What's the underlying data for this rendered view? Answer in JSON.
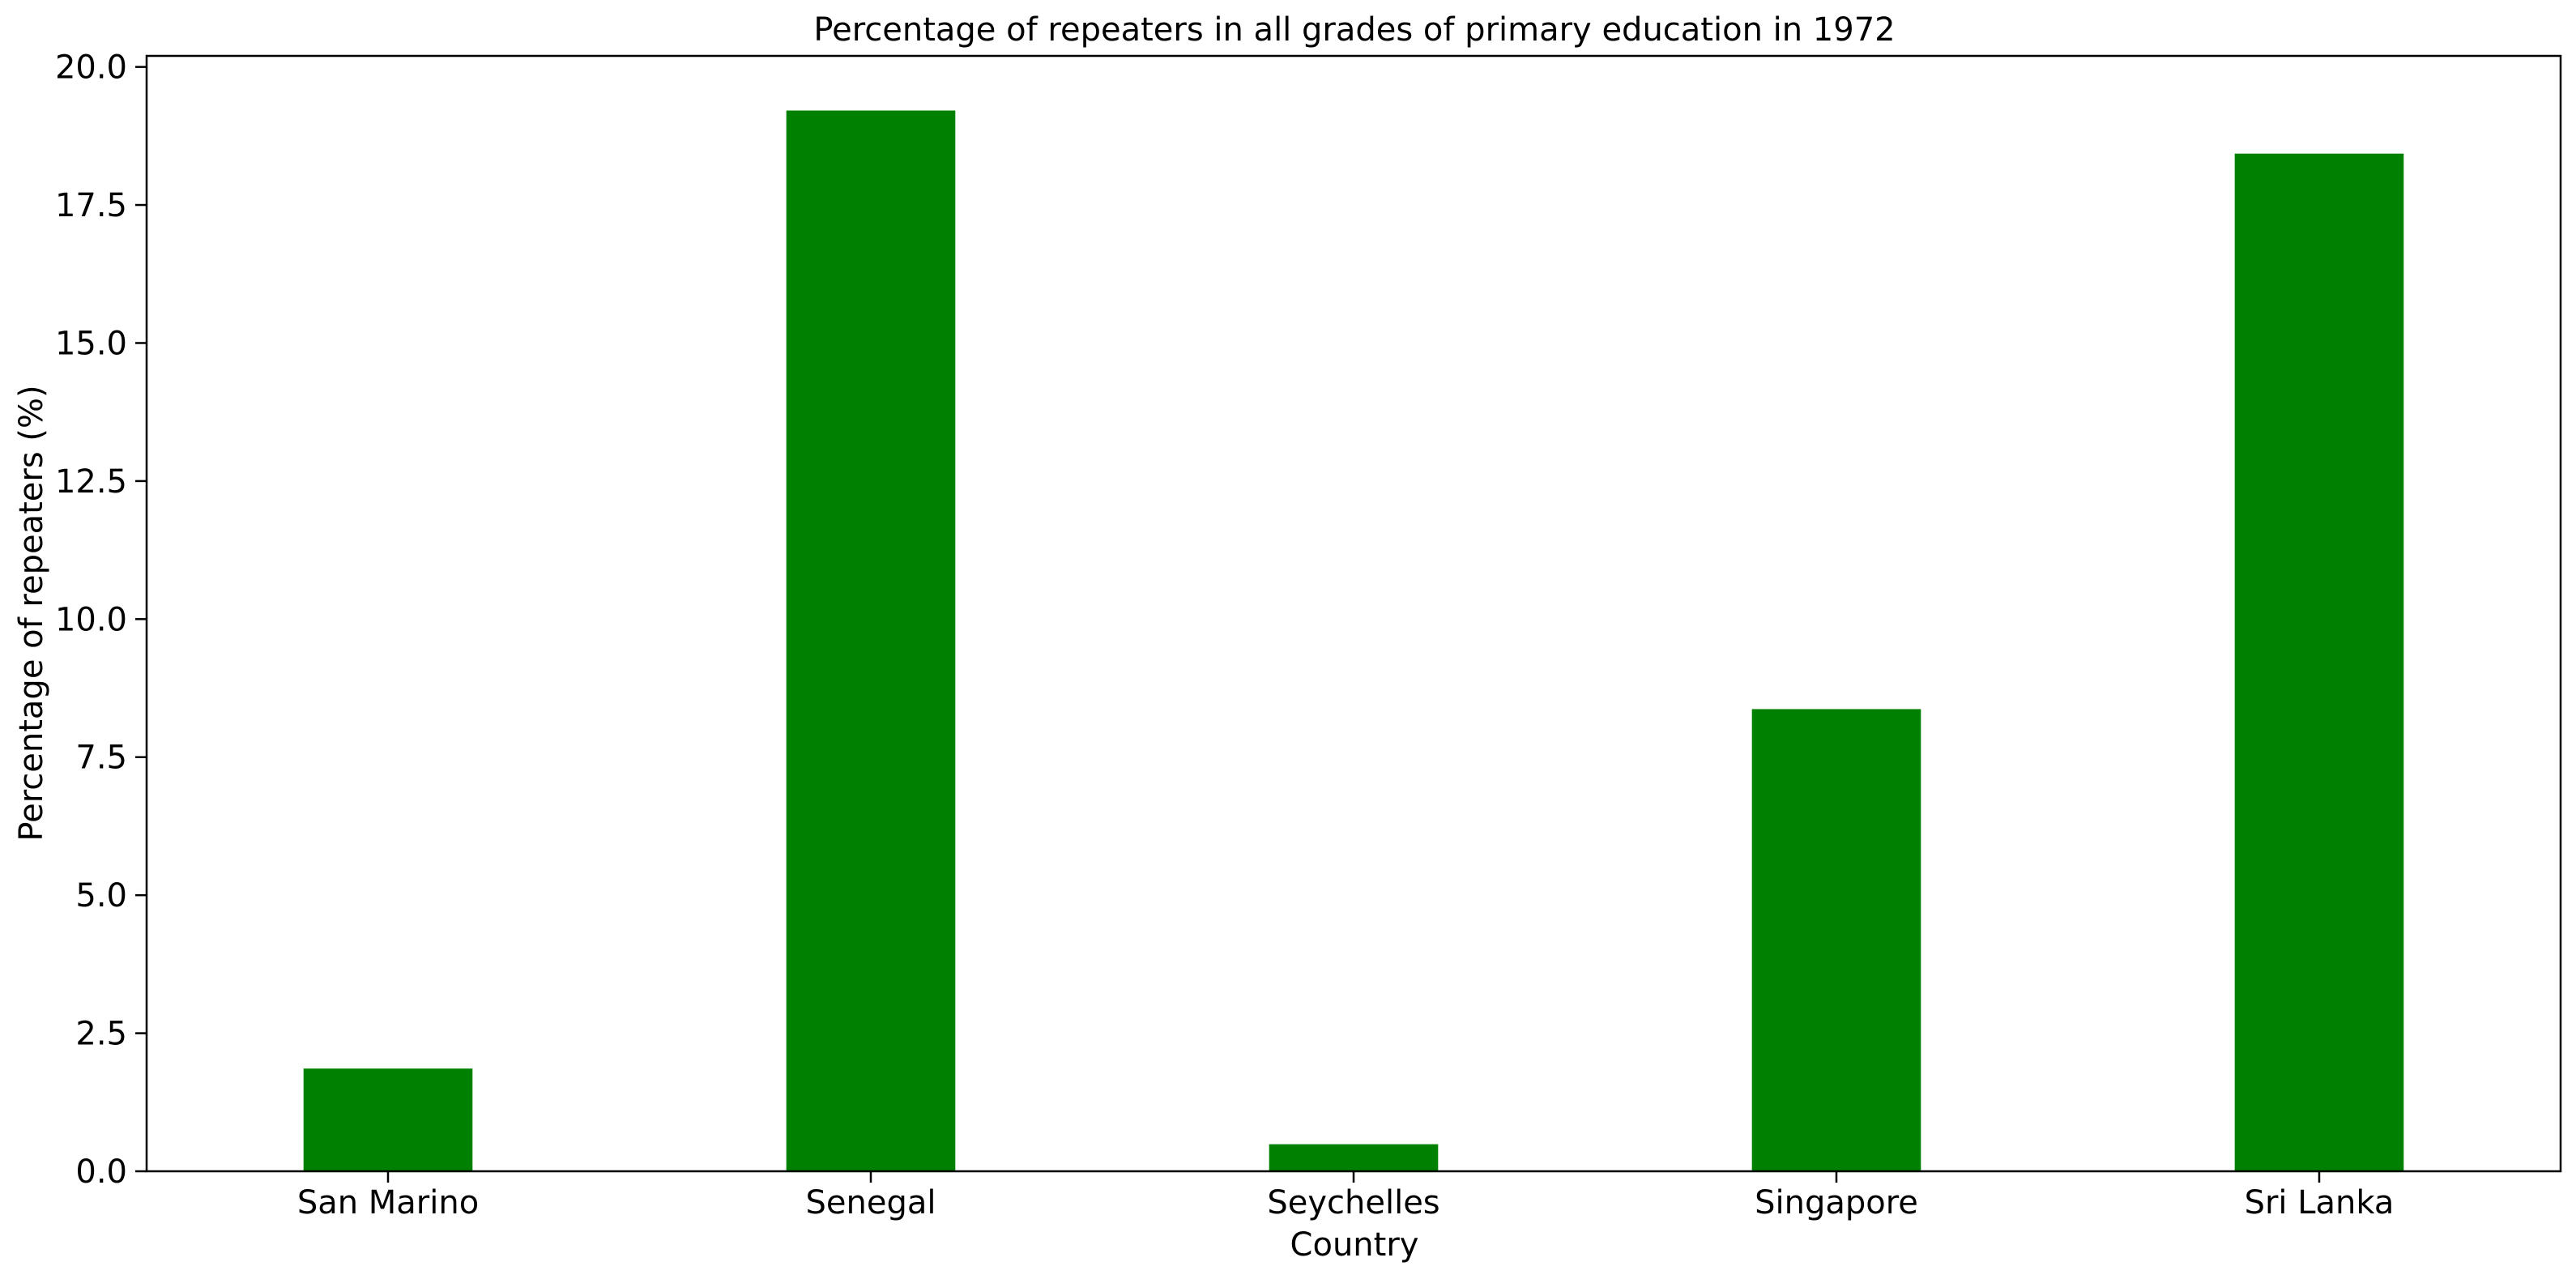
{
  "chart_data": {
    "type": "bar",
    "title": "Percentage of repeaters in all grades of primary education in 1972",
    "xlabel": "Country",
    "ylabel": "Percentage of repeaters (%)",
    "categories": [
      "San Marino",
      "Senegal",
      "Seychelles",
      "Singapore",
      "Sri Lanka"
    ],
    "values": [
      1.86,
      19.21,
      0.49,
      8.37,
      18.43
    ],
    "ylim": [
      0,
      20.2
    ],
    "yticks": [
      0.0,
      2.5,
      5.0,
      7.5,
      10.0,
      12.5,
      15.0,
      17.5,
      20.0
    ],
    "ytick_labels": [
      "0.0",
      "2.5",
      "5.0",
      "7.5",
      "10.0",
      "12.5",
      "15.0",
      "17.5",
      "20.0"
    ],
    "bar_color": "#008000",
    "grid": false,
    "legend": "none"
  }
}
